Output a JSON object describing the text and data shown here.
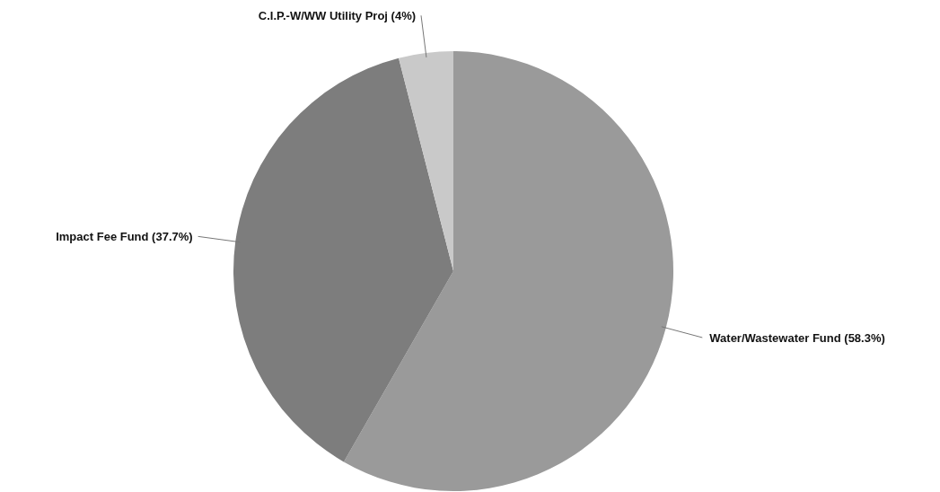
{
  "chart_data": {
    "type": "pie",
    "categories": [
      "Water/Wastewater Fund (58.3%)",
      "Impact Fee Fund (37.7%)",
      "C.I.P.-W/WW Utility Proj (4%)"
    ],
    "values": [
      58.3,
      37.7,
      4
    ],
    "colors": [
      "#9a9a9a",
      "#7d7d7d",
      "#c9c9c9"
    ]
  }
}
